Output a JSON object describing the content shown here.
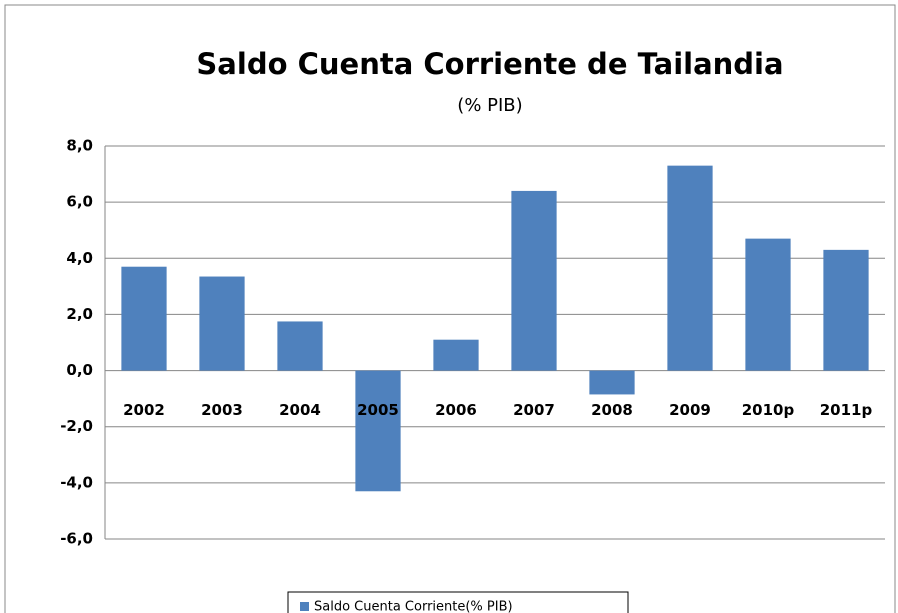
{
  "chart_data": {
    "type": "bar",
    "title": "Saldo Cuenta Corriente de Tailandia",
    "subtitle": "(% PIB)",
    "categories": [
      "2002",
      "2003",
      "2004",
      "2005",
      "2006",
      "2007",
      "2008",
      "2009",
      "2010p",
      "2011p"
    ],
    "series": [
      {
        "name": "Saldo Cuenta Corriente(% PIB)",
        "color": "#4f81bd",
        "values": [
          3.7,
          3.35,
          1.75,
          -4.3,
          1.1,
          6.4,
          -0.85,
          7.3,
          4.7,
          4.3
        ]
      }
    ],
    "ylim": [
      -6,
      8
    ],
    "yticks": [
      {
        "value": -6,
        "label": "-6,0"
      },
      {
        "value": -4,
        "label": "-4,0"
      },
      {
        "value": -2,
        "label": "-2,0"
      },
      {
        "value": 0,
        "label": "0,0"
      },
      {
        "value": 2,
        "label": "2,0"
      },
      {
        "value": 4,
        "label": "4,0"
      },
      {
        "value": 6,
        "label": "6,0"
      },
      {
        "value": 8,
        "label": "8,0"
      }
    ],
    "grid": true,
    "legend": "bottom"
  }
}
